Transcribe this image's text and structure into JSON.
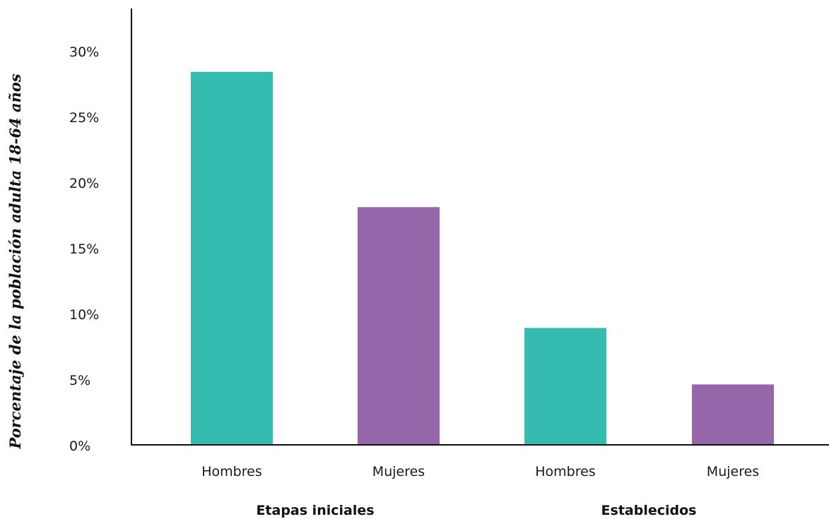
{
  "chart_data": {
    "type": "bar",
    "title": "",
    "xlabel": "",
    "ylabel": "Porcentaje de la población adulta 18-64 años",
    "ylim": [
      0,
      33
    ],
    "yticks": [
      {
        "value": 0,
        "label": "0%"
      },
      {
        "value": 5,
        "label": "5%"
      },
      {
        "value": 10,
        "label": "10%"
      },
      {
        "value": 15,
        "label": "15%"
      },
      {
        "value": 20,
        "label": "20%"
      },
      {
        "value": 25,
        "label": "25%"
      },
      {
        "value": 30,
        "label": "30%"
      }
    ],
    "groups": [
      {
        "label": "Etapas iniciales",
        "categories": [
          "Hombres",
          "Mujeres"
        ]
      },
      {
        "label": "Establecidos",
        "categories": [
          "Hombres",
          "Mujeres"
        ]
      }
    ],
    "bars": [
      {
        "group": 0,
        "category": "Hombres",
        "value": 28.4,
        "color": "#35bcb0"
      },
      {
        "group": 0,
        "category": "Mujeres",
        "value": 18.1,
        "color": "#9566aa"
      },
      {
        "group": 1,
        "category": "Hombres",
        "value": 8.9,
        "color": "#35bcb0"
      },
      {
        "group": 1,
        "category": "Mujeres",
        "value": 4.6,
        "color": "#9566aa"
      }
    ],
    "grid": false,
    "legend": "none"
  }
}
